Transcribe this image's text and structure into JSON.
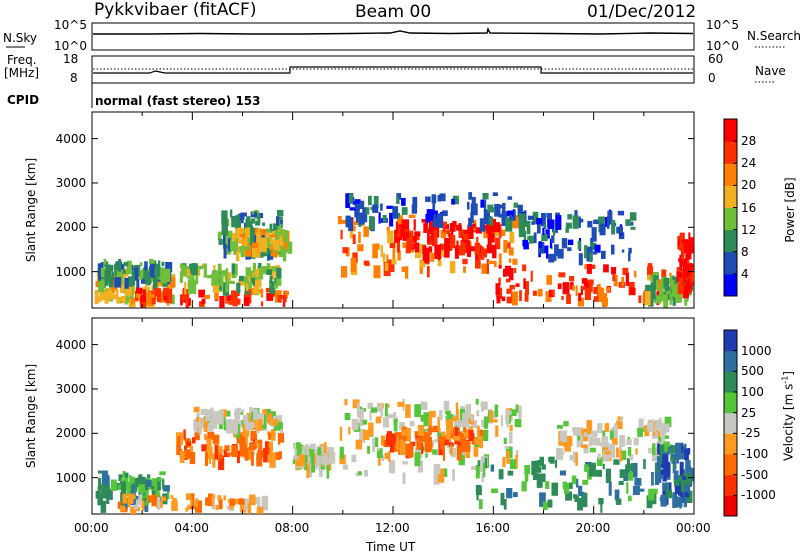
{
  "header": {
    "site": "Pykkvibaer (fitACF)",
    "beam": "Beam 00",
    "date": "01/Dec/2012"
  },
  "strip": {
    "nsky_label": "N.Sky",
    "nsearch_label": "N.Search",
    "noise_top": "10^5",
    "noise_bottom": "10^0",
    "freq_label_1": "Freq.",
    "freq_label_2": "[MHz]",
    "freq_top": "18",
    "freq_bottom": "8",
    "nave_label": "Nave",
    "nave_top": "60",
    "nave_bottom": "0",
    "cpid_label": "CPID",
    "cpid_value": "normal (fast stereo) 153"
  },
  "chart_data": [
    {
      "type": "heatmap",
      "panel": "power",
      "ylabel": "Slant Range [km]",
      "yticks": [
        "1000",
        "2000",
        "3000",
        "4000"
      ],
      "ylim": [
        180,
        4600
      ],
      "xlim": [
        0,
        24
      ],
      "colorbar_label": "Power [dB]",
      "colorbar_ticks": [
        "4",
        "8",
        "12",
        "16",
        "20",
        "24",
        "28"
      ],
      "colors": [
        "#0000ff",
        "#1e4cb4",
        "#2e8b57",
        "#6fbf3a",
        "#f0b020",
        "#ff7f00",
        "#ff3000",
        "#ff0000"
      ],
      "regions": [
        {
          "t0": 0.1,
          "t1": 3.2,
          "r0": 350,
          "r1": 1100,
          "level": 4
        },
        {
          "t0": 0.2,
          "t1": 3.0,
          "r0": 800,
          "r1": 1300,
          "level": 2
        },
        {
          "t0": 1.5,
          "t1": 7.8,
          "r0": 300,
          "r1": 650,
          "level": 6
        },
        {
          "t0": 3.5,
          "t1": 7.5,
          "r0": 750,
          "r1": 1200,
          "level": 3
        },
        {
          "t0": 5.0,
          "t1": 7.6,
          "r0": 1500,
          "r1": 2400,
          "level": 2
        },
        {
          "t0": 5.5,
          "t1": 7.8,
          "r0": 1550,
          "r1": 2000,
          "level": 4
        },
        {
          "t0": 9.8,
          "t1": 16.8,
          "r0": 1100,
          "r1": 2300,
          "level": 5
        },
        {
          "t0": 12.0,
          "t1": 16.0,
          "r0": 1500,
          "r1": 2200,
          "level": 7
        },
        {
          "t0": 10.0,
          "t1": 17.0,
          "r0": 2200,
          "r1": 2800,
          "level": 1
        },
        {
          "t0": 16.0,
          "t1": 23.5,
          "r0": 400,
          "r1": 1200,
          "level": 6
        },
        {
          "t0": 17.0,
          "t1": 21.5,
          "r0": 1400,
          "r1": 2400,
          "level": 1
        },
        {
          "t0": 22.0,
          "t1": 23.9,
          "r0": 300,
          "r1": 1000,
          "level": 3
        },
        {
          "t0": 23.3,
          "t1": 24.0,
          "r0": 600,
          "r1": 1900,
          "level": 7
        }
      ]
    },
    {
      "type": "heatmap",
      "panel": "velocity",
      "ylabel": "Slant Range [km]",
      "yticks": [
        "1000",
        "2000",
        "3000",
        "4000"
      ],
      "ylim": [
        180,
        4600
      ],
      "xlim": [
        0,
        24
      ],
      "xticks": [
        "00:00",
        "04:00",
        "08:00",
        "12:00",
        "16:00",
        "20:00",
        "00:00"
      ],
      "xlabel": "Time UT",
      "colorbar_label": "Velocity [m s^-1]",
      "colorbar_ticks": [
        "1000",
        "500",
        "100",
        "25",
        "-25",
        "-100",
        "-500",
        "-1000"
      ],
      "colors": [
        "#1e3cb0",
        "#2f6ea0",
        "#2e8b57",
        "#55c53a",
        "#c8c8c0",
        "#ff9a20",
        "#ff6a00",
        "#ff3000",
        "#ee0000"
      ],
      "regions": [
        {
          "t0": 0.1,
          "t1": 3.0,
          "r0": 400,
          "r1": 1200,
          "level": 2
        },
        {
          "t0": 1.0,
          "t1": 7.0,
          "r0": 280,
          "r1": 650,
          "level": 5
        },
        {
          "t0": 3.3,
          "t1": 7.5,
          "r0": 1500,
          "r1": 2100,
          "level": 6
        },
        {
          "t0": 4.0,
          "t1": 7.6,
          "r0": 2200,
          "r1": 2600,
          "level": 4
        },
        {
          "t0": 8.0,
          "t1": 9.5,
          "r0": 1300,
          "r1": 1800,
          "level": 4
        },
        {
          "t0": 9.8,
          "t1": 17.0,
          "r0": 1100,
          "r1": 2300,
          "level": 4
        },
        {
          "t0": 11.5,
          "t1": 15.5,
          "r0": 1700,
          "r1": 2200,
          "level": 6
        },
        {
          "t0": 10.0,
          "t1": 17.0,
          "r0": 2300,
          "r1": 2800,
          "level": 4
        },
        {
          "t0": 15.0,
          "t1": 22.5,
          "r0": 400,
          "r1": 1500,
          "level": 2
        },
        {
          "t0": 18.5,
          "t1": 23.0,
          "r0": 1500,
          "r1": 2400,
          "level": 4
        },
        {
          "t0": 22.5,
          "t1": 24.0,
          "r0": 500,
          "r1": 1800,
          "level": 1
        }
      ]
    }
  ]
}
